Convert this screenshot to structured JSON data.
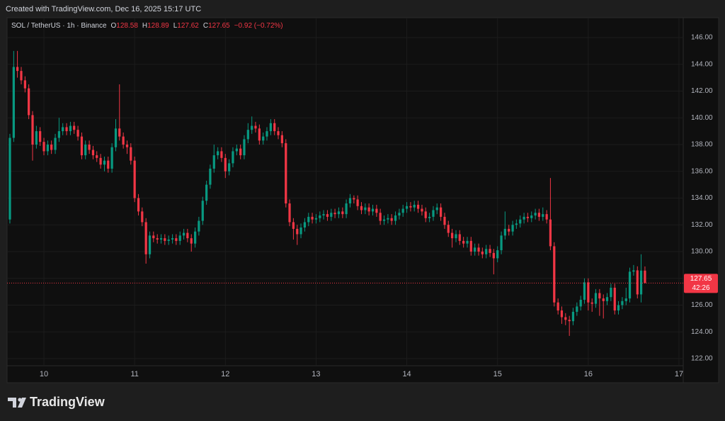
{
  "top_caption": "Created with TradingView.com, Dec 16, 2025 15:17 UTC",
  "brand": "TradingView",
  "chart_data": {
    "type": "candlestick",
    "title": "SOL / TetherUS · 1h · Binance",
    "header_labels": [
      "O",
      "H",
      "L",
      "C"
    ],
    "change": "−0.92 (−0.72%)",
    "countdown": "42:26",
    "up_color": "#089981",
    "down_color": "#f23645",
    "grid": true,
    "xlim": [
      9.594,
      17.047
    ],
    "xticks": [
      10,
      11,
      12,
      13,
      14,
      15,
      16,
      17
    ],
    "ylim": [
      120.2,
      147.48
    ],
    "yticks": [
      {
        "value": 122,
        "label": "122.00"
      },
      {
        "value": 124,
        "label": "124.00"
      },
      {
        "value": 126,
        "label": "126.00"
      },
      {
        "value": 128,
        "label": "128.00"
      },
      {
        "value": 130,
        "label": "130.00"
      },
      {
        "value": 132,
        "label": "132.00"
      },
      {
        "value": 134,
        "label": "134.00"
      },
      {
        "value": 136,
        "label": "136.00"
      },
      {
        "value": 138,
        "label": "138.00"
      },
      {
        "value": 140,
        "label": "140.00"
      },
      {
        "value": 142,
        "label": "142.00"
      },
      {
        "value": 144,
        "label": "144.00"
      },
      {
        "value": 146,
        "label": "146.00"
      }
    ],
    "x": [
      9.625,
      9.667,
      9.708,
      9.75,
      9.792,
      9.833,
      9.875,
      9.917,
      9.958,
      10,
      10.042,
      10.083,
      10.125,
      10.167,
      10.208,
      10.25,
      10.292,
      10.333,
      10.375,
      10.417,
      10.458,
      10.5,
      10.542,
      10.583,
      10.625,
      10.667,
      10.708,
      10.75,
      10.792,
      10.833,
      10.875,
      10.917,
      10.958,
      11,
      11.042,
      11.083,
      11.125,
      11.167,
      11.208,
      11.25,
      11.292,
      11.333,
      11.375,
      11.417,
      11.458,
      11.5,
      11.542,
      11.583,
      11.625,
      11.667,
      11.708,
      11.75,
      11.792,
      11.833,
      11.875,
      11.917,
      11.958,
      12,
      12.042,
      12.083,
      12.125,
      12.167,
      12.208,
      12.25,
      12.292,
      12.333,
      12.375,
      12.417,
      12.458,
      12.5,
      12.542,
      12.583,
      12.625,
      12.667,
      12.708,
      12.75,
      12.792,
      12.833,
      12.875,
      12.917,
      12.958,
      13,
      13.042,
      13.083,
      13.125,
      13.167,
      13.208,
      13.25,
      13.292,
      13.333,
      13.375,
      13.417,
      13.458,
      13.5,
      13.542,
      13.583,
      13.625,
      13.667,
      13.708,
      13.75,
      13.792,
      13.833,
      13.875,
      13.917,
      13.958,
      14,
      14.042,
      14.083,
      14.125,
      14.167,
      14.208,
      14.25,
      14.292,
      14.333,
      14.375,
      14.417,
      14.458,
      14.5,
      14.542,
      14.583,
      14.625,
      14.667,
      14.708,
      14.75,
      14.792,
      14.833,
      14.875,
      14.917,
      14.958,
      15,
      15.042,
      15.083,
      15.125,
      15.167,
      15.208,
      15.25,
      15.292,
      15.333,
      15.375,
      15.417,
      15.458,
      15.5,
      15.542,
      15.583,
      15.625,
      15.667,
      15.708,
      15.75,
      15.792,
      15.833,
      15.875,
      15.917,
      15.958,
      16,
      16.042,
      16.083,
      16.125,
      16.167,
      16.208,
      16.25,
      16.292,
      16.333,
      16.375,
      16.417,
      16.458,
      16.5,
      16.542,
      16.583,
      16.625
    ],
    "open": [
      132.4,
      138.5,
      143.8,
      143.5,
      142.8,
      142.2,
      140.2,
      138.0,
      139.0,
      138.2,
      137.5,
      138.0,
      137.6,
      138.5,
      139.0,
      139.3,
      139.0,
      139.4,
      139.1,
      138.6,
      137.2,
      138.0,
      137.6,
      137.2,
      137.0,
      136.5,
      136.8,
      136.2,
      137.8,
      139.2,
      138.6,
      138.0,
      137.8,
      136.8,
      134.0,
      133.0,
      132.2,
      129.8,
      131.2,
      131.0,
      130.9,
      131.0,
      130.8,
      130.9,
      131.0,
      130.8,
      131.2,
      131.4,
      131.0,
      130.6,
      131.5,
      132.3,
      133.8,
      135.0,
      136.2,
      137.2,
      137.5,
      137.0,
      136.0,
      136.6,
      137.5,
      137.7,
      137.2,
      138.4,
      139.1,
      139.4,
      139.2,
      138.3,
      138.6,
      139.0,
      139.6,
      139.0,
      138.7,
      138.1,
      133.6,
      132.2,
      131.7,
      131.3,
      131.8,
      132.2,
      132.6,
      132.4,
      132.5,
      132.7,
      132.8,
      132.6,
      132.9,
      132.8,
      133.0,
      132.8,
      133.6,
      134.0,
      133.9,
      133.4,
      133.1,
      133.3,
      133.0,
      133.2,
      132.9,
      132.3,
      132.4,
      132.5,
      132.3,
      132.7,
      132.9,
      133.2,
      133.4,
      133.3,
      133.5,
      133.2,
      133.0,
      132.5,
      132.6,
      133.1,
      133.3,
      132.6,
      132.0,
      131.4,
      131.0,
      131.3,
      130.8,
      130.6,
      130.8,
      130.0,
      130.3,
      130.0,
      129.8,
      130.2,
      129.9,
      129.5,
      130.1,
      131.2,
      131.7,
      131.5,
      132.0,
      132.1,
      132.4,
      132.6,
      132.5,
      132.7,
      132.9,
      132.6,
      132.8,
      132.4,
      130.4,
      126.2,
      125.6,
      125.1,
      124.9,
      124.8,
      125.5,
      125.9,
      126.4,
      127.7,
      126.2,
      126.1,
      126.9,
      126.5,
      126.3,
      126.6,
      127.3,
      125.6,
      126.0,
      126.3,
      126.5,
      128.5,
      128.6,
      126.8,
      128.58
    ],
    "high": [
      138.8,
      145.0,
      145.0,
      143.8,
      143.1,
      142.5,
      140.5,
      139.4,
      139.3,
      138.5,
      138.3,
      138.3,
      138.8,
      140.0,
      139.6,
      139.6,
      139.7,
      139.7,
      139.4,
      138.9,
      138.3,
      138.3,
      137.9,
      137.5,
      137.3,
      137.1,
      137.1,
      138.1,
      139.9,
      142.5,
      138.9,
      138.3,
      138.1,
      137.1,
      134.3,
      133.3,
      132.5,
      131.5,
      131.5,
      131.3,
      131.3,
      131.3,
      131.2,
      131.3,
      131.3,
      131.5,
      131.7,
      131.7,
      131.3,
      131.8,
      132.6,
      134.1,
      135.3,
      136.5,
      138.0,
      137.8,
      137.8,
      137.3,
      136.9,
      137.8,
      138.0,
      138.0,
      138.7,
      139.6,
      140.1,
      139.7,
      139.5,
      138.9,
      139.3,
      139.9,
      139.9,
      139.3,
      139.0,
      138.4,
      133.9,
      132.5,
      132.0,
      132.1,
      132.5,
      132.9,
      132.9,
      132.8,
      133.0,
      133.1,
      133.1,
      133.2,
      133.2,
      133.3,
      133.3,
      133.9,
      134.3,
      134.2,
      134.2,
      133.7,
      133.6,
      133.6,
      133.5,
      133.5,
      133.2,
      132.7,
      132.8,
      132.8,
      133.0,
      133.2,
      133.5,
      133.7,
      133.7,
      133.8,
      133.8,
      133.5,
      133.3,
      132.9,
      133.4,
      133.6,
      133.6,
      132.9,
      132.3,
      131.7,
      131.6,
      131.6,
      131.1,
      131.1,
      131.1,
      130.6,
      130.6,
      130.3,
      130.5,
      130.5,
      130.2,
      130.4,
      131.5,
      133.0,
      132.0,
      132.3,
      132.4,
      132.7,
      132.9,
      132.9,
      133.0,
      133.2,
      133.2,
      133.3,
      133.1,
      135.5,
      130.7,
      126.5,
      125.9,
      125.4,
      125.2,
      125.8,
      126.2,
      126.7,
      128.0,
      128.0,
      126.5,
      127.2,
      127.2,
      126.8,
      126.9,
      127.6,
      127.6,
      126.3,
      126.6,
      127.3,
      128.8,
      129.0,
      128.9,
      129.8,
      128.89
    ],
    "low": [
      132.1,
      138.2,
      143.0,
      142.5,
      141.9,
      139.9,
      136.8,
      137.7,
      137.9,
      137.2,
      137.2,
      137.3,
      137.3,
      138.2,
      138.7,
      138.7,
      138.7,
      138.8,
      138.3,
      136.9,
      136.9,
      137.3,
      136.9,
      136.7,
      136.2,
      136.0,
      135.9,
      135.9,
      137.5,
      138.3,
      137.7,
      137.3,
      136.5,
      133.7,
      132.7,
      131.9,
      129.1,
      129.5,
      130.7,
      130.6,
      130.6,
      130.5,
      130.5,
      130.6,
      130.5,
      130.5,
      130.9,
      130.7,
      130.0,
      130.3,
      131.2,
      132.0,
      133.5,
      134.7,
      135.9,
      136.9,
      136.7,
      135.5,
      135.7,
      136.3,
      137.2,
      136.9,
      136.9,
      138.1,
      138.8,
      138.9,
      138.0,
      138.0,
      138.3,
      138.7,
      138.7,
      138.4,
      137.8,
      133.3,
      131.9,
      130.9,
      130.5,
      131.0,
      131.5,
      131.9,
      132.1,
      132.1,
      132.2,
      132.4,
      132.3,
      132.3,
      132.5,
      132.5,
      132.5,
      132.5,
      133.3,
      133.6,
      133.1,
      132.8,
      132.8,
      132.7,
      132.7,
      132.6,
      132.0,
      132.0,
      132.1,
      132.0,
      132.0,
      132.4,
      132.6,
      132.9,
      133.0,
      133.0,
      132.9,
      132.7,
      132.2,
      132.2,
      132.3,
      132.8,
      132.3,
      131.7,
      131.1,
      130.3,
      130.7,
      130.5,
      130.3,
      130.3,
      129.7,
      129.7,
      129.7,
      129.5,
      129.5,
      129.6,
      128.3,
      129.2,
      129.8,
      130.9,
      131.2,
      131.2,
      131.7,
      131.8,
      132.1,
      132.2,
      132.2,
      132.4,
      132.3,
      132.3,
      132.1,
      130.1,
      125.9,
      125.3,
      124.6,
      124.5,
      123.7,
      124.5,
      125.2,
      125.6,
      126.1,
      125.6,
      125.5,
      125.8,
      125.2,
      125.0,
      126.0,
      126.3,
      125.3,
      125.3,
      125.7,
      126.0,
      126.2,
      128.2,
      126.5,
      126.2,
      127.62
    ],
    "close": [
      138.5,
      143.8,
      143.5,
      142.8,
      142.2,
      140.2,
      138.0,
      139.0,
      138.2,
      137.5,
      138.0,
      137.6,
      138.5,
      139.0,
      139.3,
      139.0,
      139.4,
      139.1,
      138.6,
      137.2,
      138.0,
      137.6,
      137.2,
      137.0,
      136.5,
      136.8,
      136.2,
      137.8,
      139.2,
      138.6,
      138.0,
      137.8,
      136.8,
      134.0,
      133.0,
      132.2,
      129.8,
      131.2,
      131.0,
      130.9,
      131.0,
      130.8,
      130.9,
      131.0,
      130.8,
      131.2,
      131.4,
      131.0,
      130.6,
      131.5,
      132.3,
      133.8,
      135.0,
      136.2,
      137.2,
      137.5,
      137.0,
      136.0,
      136.6,
      137.5,
      137.7,
      137.2,
      138.4,
      139.1,
      139.4,
      139.2,
      138.3,
      138.6,
      139.0,
      139.6,
      139.0,
      138.7,
      138.1,
      133.6,
      132.2,
      131.7,
      131.3,
      131.8,
      132.2,
      132.6,
      132.4,
      132.5,
      132.7,
      132.8,
      132.6,
      132.9,
      132.8,
      133.0,
      132.8,
      133.6,
      134.0,
      133.9,
      133.4,
      133.1,
      133.3,
      133.0,
      133.2,
      132.9,
      132.3,
      132.4,
      132.5,
      132.3,
      132.7,
      132.9,
      133.2,
      133.4,
      133.3,
      133.5,
      133.2,
      133.0,
      132.5,
      132.6,
      133.1,
      133.3,
      132.6,
      132.0,
      131.4,
      131.0,
      131.3,
      130.8,
      130.6,
      130.8,
      130.0,
      130.3,
      130.0,
      129.8,
      130.2,
      129.9,
      129.5,
      130.1,
      131.2,
      131.7,
      131.5,
      132.0,
      132.1,
      132.4,
      132.6,
      132.5,
      132.7,
      132.9,
      132.6,
      132.8,
      132.4,
      130.4,
      126.2,
      125.6,
      125.1,
      124.9,
      124.8,
      125.5,
      125.9,
      126.4,
      127.7,
      126.2,
      126.1,
      126.9,
      126.5,
      126.3,
      126.6,
      127.3,
      125.6,
      126.0,
      126.3,
      126.5,
      128.5,
      128.6,
      126.8,
      128.58,
      127.65
    ]
  }
}
